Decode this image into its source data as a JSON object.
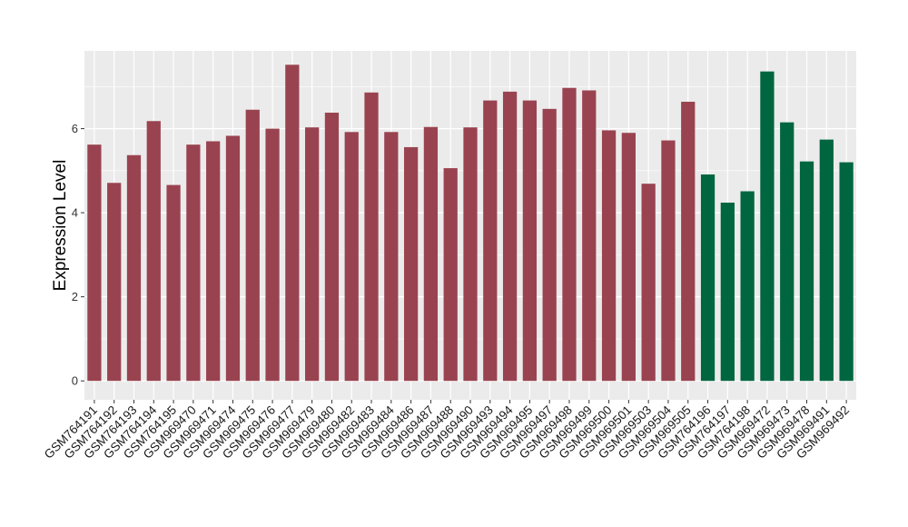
{
  "chart_data": {
    "type": "bar",
    "title": "",
    "xlabel": "",
    "ylabel": "Expression Level",
    "ylim": [
      -0.45,
      7.85
    ],
    "yticks": [
      0,
      2,
      4,
      6
    ],
    "grid": true,
    "legend": "none",
    "categories": [
      "GSM764191",
      "GSM764192",
      "GSM764193",
      "GSM764194",
      "GSM764195",
      "GSM969470",
      "GSM969471",
      "GSM969474",
      "GSM969475",
      "GSM969476",
      "GSM969477",
      "GSM969479",
      "GSM969480",
      "GSM969482",
      "GSM969483",
      "GSM969484",
      "GSM969486",
      "GSM969487",
      "GSM969488",
      "GSM969490",
      "GSM969493",
      "GSM969494",
      "GSM969495",
      "GSM969497",
      "GSM969498",
      "GSM969499",
      "GSM969500",
      "GSM969501",
      "GSM969503",
      "GSM969504",
      "GSM969505",
      "GSM764196",
      "GSM764197",
      "GSM764198",
      "GSM969472",
      "GSM969473",
      "GSM969478",
      "GSM969491",
      "GSM969492"
    ],
    "values": [
      5.62,
      4.71,
      5.37,
      6.18,
      4.66,
      5.62,
      5.7,
      5.83,
      6.45,
      6.0,
      7.52,
      6.03,
      6.38,
      5.92,
      6.86,
      5.92,
      5.56,
      6.04,
      5.06,
      6.03,
      6.67,
      6.88,
      6.67,
      6.47,
      6.97,
      6.91,
      5.96,
      5.9,
      4.69,
      5.72,
      6.64,
      4.91,
      4.24,
      4.51,
      7.36,
      6.15,
      5.22,
      5.74,
      5.2
    ],
    "groups": [
      0,
      0,
      0,
      0,
      0,
      0,
      0,
      0,
      0,
      0,
      0,
      0,
      0,
      0,
      0,
      0,
      0,
      0,
      0,
      0,
      0,
      0,
      0,
      0,
      0,
      0,
      0,
      0,
      0,
      0,
      0,
      1,
      1,
      1,
      1,
      1,
      1,
      1,
      1
    ],
    "colors": [
      "#9a4350",
      "#006640"
    ],
    "panel_background": "#ebebeb",
    "grid_color": "#ffffff"
  }
}
